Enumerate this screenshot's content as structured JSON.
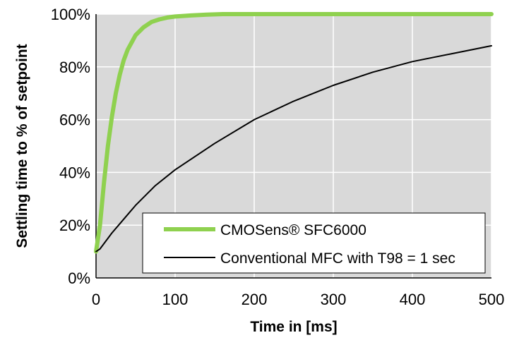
{
  "chart_data": {
    "type": "line",
    "xlabel": "Time in [ms]",
    "ylabel": "Settling time to % of setpoint",
    "xlim": [
      0,
      500
    ],
    "ylim": [
      0,
      100
    ],
    "x_ticks": [
      "0",
      "100",
      "200",
      "300",
      "400",
      "500"
    ],
    "y_ticks": [
      "0%",
      "20%",
      "40%",
      "60%",
      "80%",
      "100%"
    ],
    "grid": true,
    "legend_position": "bottom-right",
    "plot_background": "#d9d9d9",
    "series": [
      {
        "name": "CMOSens® SFC6000",
        "color": "#8fd14f",
        "x": [
          0,
          5,
          10,
          15,
          20,
          25,
          30,
          35,
          40,
          50,
          60,
          70,
          80,
          90,
          100,
          120,
          140,
          160,
          200,
          300,
          400,
          500
        ],
        "y": [
          10,
          20,
          36,
          50,
          61,
          70,
          77,
          82.5,
          86.5,
          92,
          95,
          97,
          98,
          98.7,
          99.1,
          99.5,
          99.8,
          100,
          100,
          100,
          100,
          100
        ]
      },
      {
        "name": "Conventional MFC with T98 = 1 sec",
        "color": "#000000",
        "x": [
          0,
          5,
          10,
          20,
          30,
          40,
          50,
          75,
          100,
          150,
          200,
          250,
          300,
          350,
          400,
          450,
          500
        ],
        "y": [
          10,
          11,
          13,
          17,
          20.5,
          24,
          27.5,
          35,
          41,
          51,
          60,
          67,
          73,
          78,
          82,
          85,
          88
        ]
      }
    ]
  }
}
